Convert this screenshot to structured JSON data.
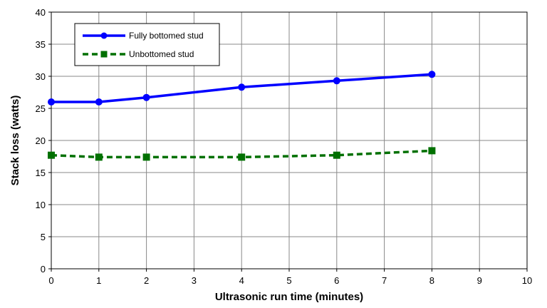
{
  "chart_data": {
    "type": "line",
    "xlabel": "Ultrasonic run time (minutes)",
    "ylabel": "Stack loss (watts)",
    "xlim": [
      0,
      10
    ],
    "ylim": [
      0,
      40
    ],
    "x_ticks": [
      0,
      1,
      2,
      3,
      4,
      5,
      6,
      7,
      8,
      9,
      10
    ],
    "y_ticks": [
      0,
      5,
      10,
      15,
      20,
      25,
      30,
      35,
      40
    ],
    "grid": true,
    "legend_position": "top-left",
    "series": [
      {
        "name": "Fully bottomed stud",
        "color": "#0000ff",
        "marker": "circle",
        "line_style": "solid",
        "x": [
          0,
          1,
          2,
          4,
          6,
          8
        ],
        "y": [
          26.0,
          26.0,
          26.7,
          28.3,
          29.3,
          30.3
        ]
      },
      {
        "name": "Unbottomed stud",
        "color": "#007000",
        "marker": "square",
        "line_style": "dashed",
        "x": [
          0,
          1,
          2,
          4,
          6,
          8
        ],
        "y": [
          17.7,
          17.4,
          17.4,
          17.4,
          17.7,
          18.4
        ]
      }
    ]
  }
}
